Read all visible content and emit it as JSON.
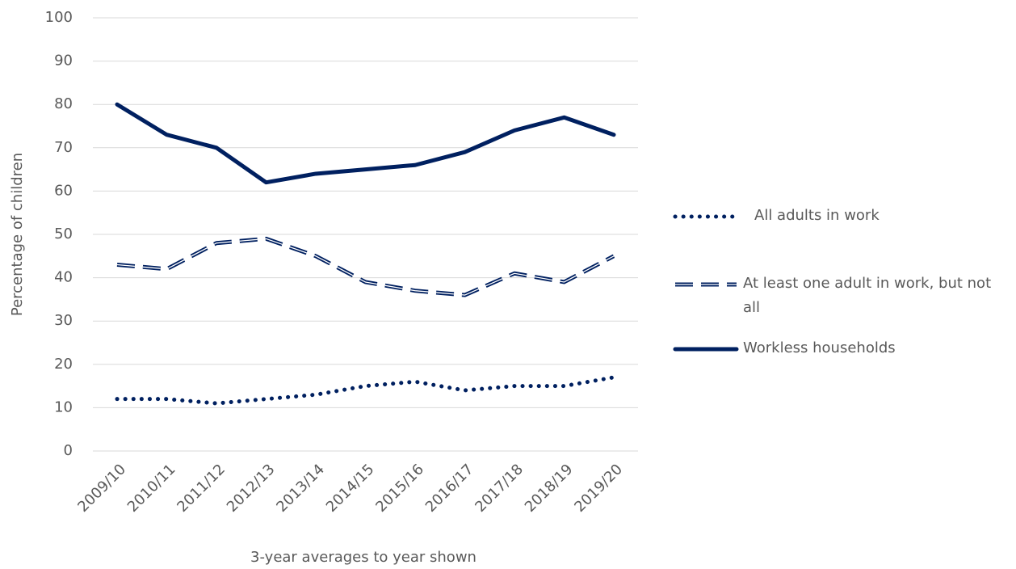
{
  "chart_data": {
    "type": "line",
    "x_label": "3-year averages to year shown",
    "y_label": "Percentage of children",
    "categories": [
      "2009/10",
      "2010/11",
      "2011/12",
      "2012/13",
      "2013/14",
      "2014/15",
      "2015/16",
      "2016/17",
      "2017/18",
      "2018/19",
      "2019/20"
    ],
    "series": [
      {
        "name": "All adults in work",
        "color": "#002060",
        "dash": "dotted",
        "values": [
          12,
          12,
          11,
          12,
          13,
          15,
          16,
          14,
          15,
          15,
          17
        ]
      },
      {
        "name": "At least one adult in work, but not all",
        "color": "#002060",
        "dash": "double-dashed",
        "values": [
          43,
          42,
          48,
          49,
          45,
          39,
          37,
          36,
          41,
          39,
          45
        ]
      },
      {
        "name": "Workless households",
        "color": "#002060",
        "dash": "solid",
        "values": [
          80,
          73,
          70,
          62,
          64,
          65,
          66,
          69,
          74,
          77,
          73
        ]
      }
    ],
    "ylim": [
      0,
      100
    ],
    "yticks": [
      0,
      10,
      20,
      30,
      40,
      50,
      60,
      70,
      80,
      90,
      100
    ],
    "grid": true,
    "legend": "right"
  }
}
